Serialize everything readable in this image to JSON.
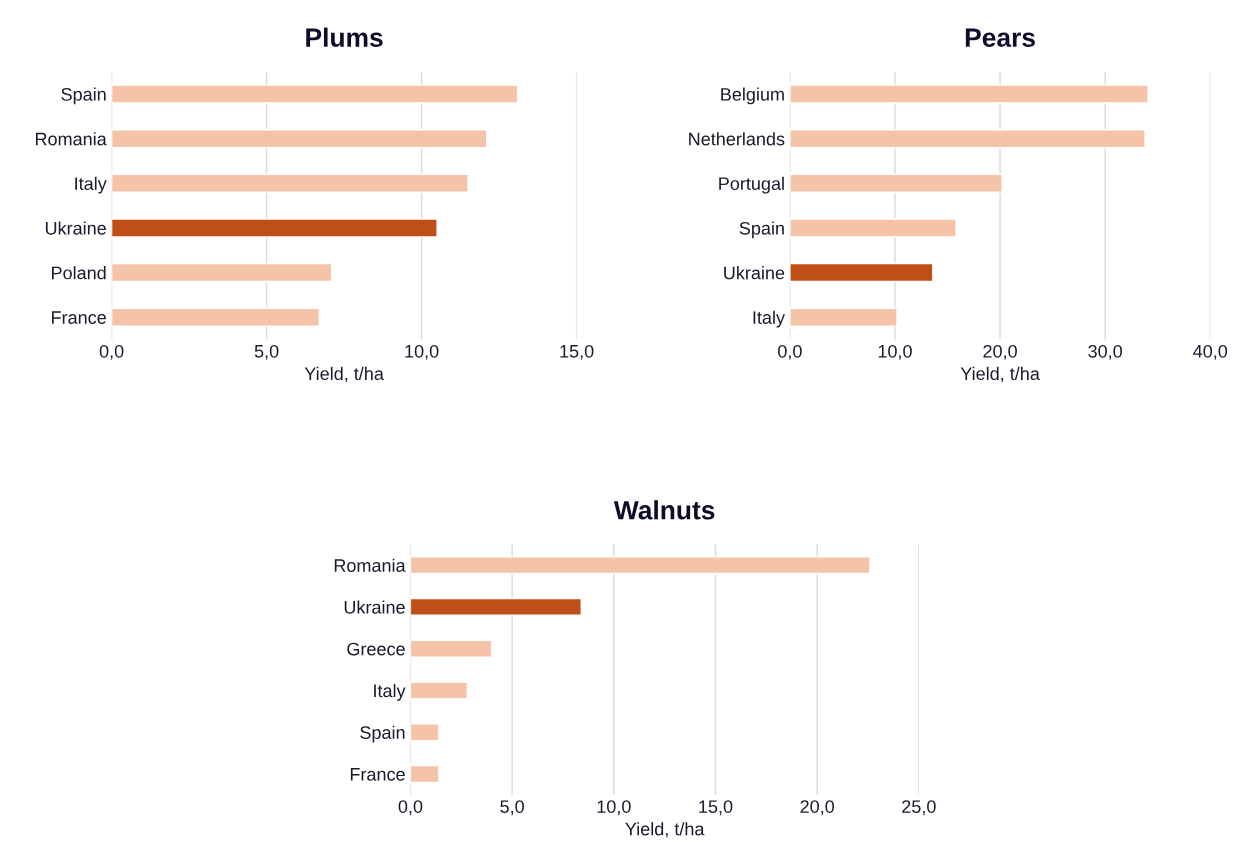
{
  "chart_data": [
    {
      "type": "bar",
      "orientation": "horizontal",
      "title": "Plums",
      "xlabel": "Yield, t/ha",
      "categories": [
        "Spain",
        "Romania",
        "Italy",
        "Ukraine",
        "Poland",
        "France"
      ],
      "values": [
        13.1,
        12.1,
        11.5,
        10.5,
        7.1,
        6.7
      ],
      "colors": [
        "#f5c4a8",
        "#f5c4a8",
        "#f5c4a8",
        "#c04e17",
        "#f5c4a8",
        "#f5c4a8"
      ],
      "xlim": [
        0,
        15
      ],
      "xticks": [
        {
          "value": 0,
          "label": "0,0"
        },
        {
          "value": 5,
          "label": "5,0"
        },
        {
          "value": 10,
          "label": "10,0"
        },
        {
          "value": 15,
          "label": "15,0"
        }
      ],
      "grid": "x"
    },
    {
      "type": "bar",
      "orientation": "horizontal",
      "title": "Pears",
      "xlabel": "Yield, t/ha",
      "categories": [
        "Belgium",
        "Netherlands",
        "Portugal",
        "Spain",
        "Ukraine",
        "Italy"
      ],
      "values": [
        34.1,
        33.8,
        20.2,
        15.8,
        13.6,
        10.2
      ],
      "colors": [
        "#f5c4a8",
        "#f5c4a8",
        "#f5c4a8",
        "#f5c4a8",
        "#c04e17",
        "#f5c4a8"
      ],
      "xlim": [
        0,
        40
      ],
      "xticks": [
        {
          "value": 0,
          "label": "0,0"
        },
        {
          "value": 10,
          "label": "10,0"
        },
        {
          "value": 20,
          "label": "20,0"
        },
        {
          "value": 30,
          "label": "30,0"
        },
        {
          "value": 40,
          "label": "40,0"
        }
      ],
      "grid": "x"
    },
    {
      "type": "bar",
      "orientation": "horizontal",
      "title": "Walnuts",
      "xlabel": "Yield, t/ha",
      "categories": [
        "Romania",
        "Ukraine",
        "Greece",
        "Italy",
        "Spain",
        "France"
      ],
      "values": [
        22.6,
        8.4,
        4.0,
        2.8,
        1.4,
        1.4
      ],
      "colors": [
        "#f5c4a8",
        "#c04e17",
        "#f5c4a8",
        "#f5c4a8",
        "#f5c4a8",
        "#f5c4a8"
      ],
      "xlim": [
        0,
        25
      ],
      "xticks": [
        {
          "value": 0,
          "label": "0,0"
        },
        {
          "value": 5,
          "label": "5,0"
        },
        {
          "value": 10,
          "label": "10,0"
        },
        {
          "value": 15,
          "label": "15,0"
        },
        {
          "value": 20,
          "label": "20,0"
        },
        {
          "value": 25,
          "label": "25,0"
        }
      ],
      "grid": "x"
    }
  ]
}
